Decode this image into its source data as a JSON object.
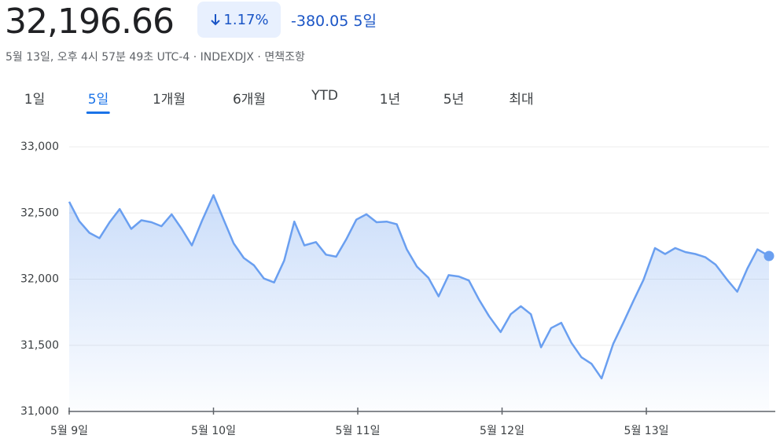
{
  "header": {
    "price": "32,196.66",
    "change_pct": "1.17%",
    "change_abs": "-380.05",
    "period": "5일",
    "subtitle": [
      "5월 13일, 오후 4시 57분 49초 UTC-4",
      "INDEXDJX",
      "면책조항"
    ]
  },
  "tabs": [
    "1일",
    "5일",
    "1개월",
    "6개월",
    "YTD",
    "1년",
    "5년",
    "최대"
  ],
  "chart_data": {
    "type": "line",
    "color": "#6a9ff0",
    "grid": true,
    "x": [
      0,
      0.07,
      0.14,
      0.21,
      0.28,
      0.35,
      0.43,
      0.5,
      0.57,
      0.64,
      0.71,
      0.78,
      0.85,
      0.92,
      1.0,
      1.07,
      1.14,
      1.21,
      1.28,
      1.35,
      1.42,
      1.49,
      1.56,
      1.63,
      1.71,
      1.78,
      1.85,
      1.92,
      1.99,
      2.06,
      2.13,
      2.2,
      2.27,
      2.34,
      2.41,
      2.49,
      2.56,
      2.63,
      2.7,
      2.77,
      2.84,
      2.91,
      2.99,
      3.06,
      3.13,
      3.2,
      3.27,
      3.34,
      3.41,
      3.48,
      3.55,
      3.62,
      3.69,
      3.77,
      3.84,
      3.91,
      3.98,
      4.06,
      4.13,
      4.2,
      4.27,
      4.34,
      4.41,
      4.48,
      4.56,
      4.63,
      4.7,
      4.77,
      4.85
    ],
    "values": [
      32585,
      32438,
      32350,
      32310,
      32430,
      32530,
      32380,
      32445,
      32430,
      32400,
      32490,
      32380,
      32255,
      32440,
      32635,
      32450,
      32270,
      32160,
      32105,
      32005,
      31975,
      32140,
      32435,
      32255,
      32280,
      32185,
      32170,
      32300,
      32450,
      32490,
      32430,
      32435,
      32415,
      32225,
      32095,
      32010,
      31870,
      32030,
      32020,
      31990,
      31845,
      31720,
      31600,
      31735,
      31795,
      31735,
      31485,
      31630,
      31670,
      31520,
      31410,
      31360,
      31250,
      31510,
      31670,
      31835,
      31995,
      32235,
      32190,
      32235,
      32205,
      32190,
      32165,
      32110,
      31995,
      31905,
      32080,
      32225,
      32175
    ],
    "xlim": [
      0,
      4.85
    ],
    "xticks": [
      {
        "value": 0,
        "label": "5월 9일"
      },
      {
        "value": 1,
        "label": "5월 10일"
      },
      {
        "value": 2,
        "label": "5월 11일"
      },
      {
        "value": 3,
        "label": "5월 12일"
      },
      {
        "value": 4,
        "label": "5월 13일"
      }
    ],
    "ylim": [
      31000,
      33000
    ],
    "yticks": [
      {
        "value": 31000,
        "label": "31,000"
      },
      {
        "value": 31500,
        "label": "31,500"
      },
      {
        "value": 32000,
        "label": "32,000"
      },
      {
        "value": 32500,
        "label": "32,500"
      },
      {
        "value": 33000,
        "label": "33,000"
      }
    ]
  }
}
